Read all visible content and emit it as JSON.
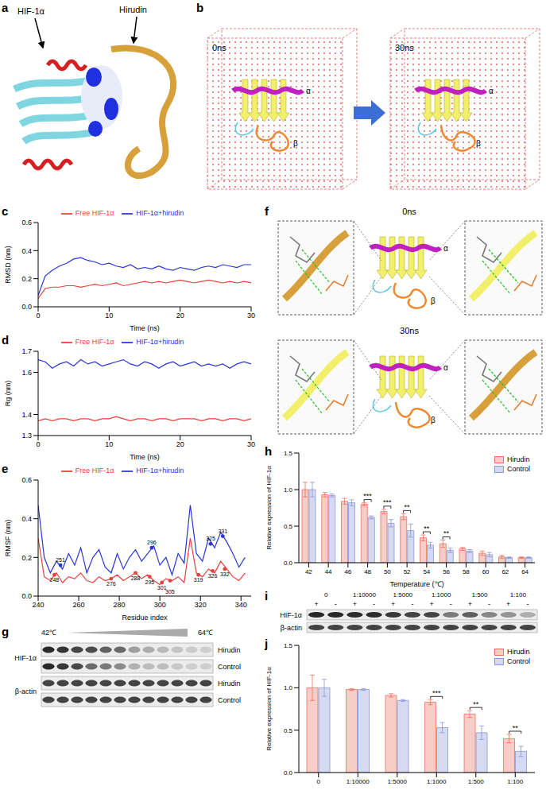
{
  "panel_labels": [
    "a",
    "b",
    "c",
    "d",
    "e",
    "f",
    "g",
    "h",
    "i",
    "j"
  ],
  "structures": {
    "a": {
      "labels": [
        "HIF-1α",
        "Hirudin"
      ]
    },
    "b": {
      "times": [
        "0ns",
        "30ns"
      ],
      "chains": [
        "α",
        "β"
      ]
    },
    "f": {
      "times": [
        "0ns",
        "30ns"
      ],
      "chains": [
        "α",
        "β"
      ]
    }
  },
  "blots": {
    "g": {
      "range_labels": [
        "42℃",
        "64℃"
      ],
      "rows": [
        {
          "protein": "HIF-1α",
          "group": "Hirudin"
        },
        {
          "protein": "HIF-1α",
          "group": "Control"
        },
        {
          "protein": "β-actin",
          "group": "Hirudin"
        },
        {
          "protein": "β-actin",
          "group": "Control"
        }
      ]
    },
    "i": {
      "treatments": [
        "+",
        "-"
      ],
      "rows": [
        "HIF-1α",
        "β-actin"
      ]
    }
  },
  "chart_data": [
    {
      "type": "line",
      "x_label": "Time (ns)",
      "y_label": "RMSD (nm)",
      "x": [
        0,
        1,
        2,
        3,
        4,
        5,
        6,
        7,
        8,
        9,
        10,
        11,
        12,
        13,
        14,
        15,
        16,
        17,
        18,
        19,
        20,
        21,
        22,
        23,
        24,
        25,
        26,
        27,
        28,
        29,
        30
      ],
      "series": [
        {
          "name": "Free HIF-1α",
          "color": "#e8413c",
          "values": [
            0.06,
            0.13,
            0.14,
            0.14,
            0.15,
            0.15,
            0.14,
            0.15,
            0.16,
            0.15,
            0.16,
            0.17,
            0.15,
            0.16,
            0.17,
            0.18,
            0.17,
            0.18,
            0.17,
            0.18,
            0.19,
            0.18,
            0.17,
            0.18,
            0.19,
            0.18,
            0.17,
            0.18,
            0.17,
            0.18,
            0.17
          ]
        },
        {
          "name": "HIF-1α+hirudin",
          "color": "#2b35d6",
          "values": [
            0.08,
            0.22,
            0.26,
            0.29,
            0.31,
            0.34,
            0.35,
            0.33,
            0.32,
            0.3,
            0.31,
            0.29,
            0.28,
            0.3,
            0.27,
            0.28,
            0.27,
            0.29,
            0.27,
            0.26,
            0.28,
            0.27,
            0.26,
            0.28,
            0.29,
            0.28,
            0.3,
            0.29,
            0.28,
            0.3,
            0.3
          ]
        }
      ],
      "xlim": [
        0,
        30
      ],
      "xticks": [
        0,
        10,
        20,
        30
      ],
      "ylim": [
        0,
        0.6
      ],
      "yticks": [
        {
          "value": 0,
          "label": "0.0"
        },
        0.2,
        0.4,
        0.6
      ],
      "legend": "top"
    },
    {
      "type": "line",
      "x_label": "Time (ns)",
      "y_label": "Rg (nm)",
      "x": [
        0,
        1,
        2,
        3,
        4,
        5,
        6,
        7,
        8,
        9,
        10,
        11,
        12,
        13,
        14,
        15,
        16,
        17,
        18,
        19,
        20,
        21,
        22,
        23,
        24,
        25,
        26,
        27,
        28,
        29,
        30
      ],
      "series": [
        {
          "name": "Free HIF-1α",
          "color": "#e8413c",
          "values": [
            1.37,
            1.38,
            1.37,
            1.38,
            1.38,
            1.37,
            1.38,
            1.38,
            1.37,
            1.38,
            1.38,
            1.39,
            1.38,
            1.37,
            1.38,
            1.38,
            1.37,
            1.38,
            1.38,
            1.37,
            1.38,
            1.38,
            1.38,
            1.37,
            1.38,
            1.38,
            1.37,
            1.38,
            1.38,
            1.37,
            1.38
          ]
        },
        {
          "name": "HIF-1α+hirudin",
          "color": "#2b35d6",
          "values": [
            1.66,
            1.65,
            1.62,
            1.64,
            1.65,
            1.63,
            1.66,
            1.64,
            1.65,
            1.63,
            1.64,
            1.65,
            1.66,
            1.64,
            1.63,
            1.65,
            1.64,
            1.62,
            1.64,
            1.65,
            1.63,
            1.64,
            1.65,
            1.63,
            1.64,
            1.63,
            1.64,
            1.62,
            1.64,
            1.65,
            1.64
          ]
        }
      ],
      "xlim": [
        0,
        30
      ],
      "xticks": [
        0,
        10,
        20,
        30
      ],
      "ylim": [
        1.3,
        1.7
      ],
      "yticks": [
        1.3,
        1.4,
        1.6,
        1.7
      ],
      "legend": "top"
    },
    {
      "type": "line",
      "x_label": "Residue index",
      "y_label": "RMSF (nm)",
      "x": [
        240,
        243,
        246,
        249,
        252,
        255,
        258,
        261,
        264,
        267,
        270,
        273,
        276,
        279,
        282,
        285,
        288,
        291,
        294,
        297,
        300,
        303,
        306,
        309,
        312,
        315,
        318,
        321,
        324,
        327,
        330,
        333,
        336,
        339,
        342
      ],
      "series": [
        {
          "name": "Free HIF-1α",
          "color": "#e8413c",
          "values": [
            0.3,
            0.1,
            0.08,
            0.12,
            0.07,
            0.1,
            0.09,
            0.12,
            0.08,
            0.07,
            0.1,
            0.08,
            0.09,
            0.11,
            0.08,
            0.1,
            0.12,
            0.09,
            0.11,
            0.08,
            0.06,
            0.09,
            0.08,
            0.1,
            0.07,
            0.3,
            0.12,
            0.1,
            0.14,
            0.12,
            0.18,
            0.14,
            0.1,
            0.08,
            0.12
          ]
        },
        {
          "name": "HIF-1α+hirudin",
          "color": "#2b35d6",
          "values": [
            0.47,
            0.2,
            0.12,
            0.18,
            0.14,
            0.22,
            0.16,
            0.25,
            0.12,
            0.2,
            0.24,
            0.15,
            0.12,
            0.22,
            0.14,
            0.2,
            0.24,
            0.18,
            0.22,
            0.26,
            0.16,
            0.2,
            0.11,
            0.22,
            0.17,
            0.47,
            0.22,
            0.18,
            0.3,
            0.25,
            0.33,
            0.28,
            0.22,
            0.15,
            0.2
          ]
        }
      ],
      "highlighted": [
        {
          "series": "Free HIF-1α",
          "x": 248,
          "y": 0.11
        },
        {
          "series": "HIF-1α+hirudin",
          "x": 251,
          "y": 0.16
        },
        {
          "series": "Free HIF-1α",
          "x": 276,
          "y": 0.09
        },
        {
          "series": "Free HIF-1α",
          "x": 288,
          "y": 0.12
        },
        {
          "series": "Free HIF-1α",
          "x": 295,
          "y": 0.1
        },
        {
          "series": "HIF-1α+hirudin",
          "x": 296,
          "y": 0.25
        },
        {
          "series": "Free HIF-1α",
          "x": 301,
          "y": 0.07
        },
        {
          "series": "Free HIF-1α",
          "x": 305,
          "y": 0.08
        },
        {
          "series": "Free HIF-1α",
          "x": 319,
          "y": 0.11
        },
        {
          "series": "HIF-1α+hirudin",
          "x": 325,
          "y": 0.27
        },
        {
          "series": "Free HIF-1α",
          "x": 326,
          "y": 0.13
        },
        {
          "series": "HIF-1α+hirudin",
          "x": 331,
          "y": 0.31
        },
        {
          "series": "Free HIF-1α",
          "x": 332,
          "y": 0.14
        }
      ],
      "xlim": [
        240,
        345
      ],
      "xticks": [
        240,
        260,
        280,
        300,
        320,
        340
      ],
      "ylim": [
        0,
        0.6
      ],
      "yticks": [
        {
          "value": 0,
          "label": "0.0"
        },
        0.2,
        0.4,
        0.6
      ],
      "legend": "top"
    },
    {
      "type": "bar",
      "x_label": "Temperature (℃)",
      "y_label": "Relative expression of HIF-1α",
      "categories": [
        "42",
        "44",
        "46",
        "48",
        "50",
        "52",
        "54",
        "56",
        "58",
        "60",
        "62",
        "64"
      ],
      "series": [
        {
          "name": "Hirudin",
          "color": "#e8715e",
          "values": [
            1.0,
            0.93,
            0.84,
            0.8,
            0.7,
            0.63,
            0.34,
            0.26,
            0.19,
            0.13,
            0.08,
            0.07
          ],
          "errors": [
            0.1,
            0.03,
            0.04,
            0.02,
            0.03,
            0.04,
            0.04,
            0.05,
            0.02,
            0.03,
            0.02,
            0.01
          ]
        },
        {
          "name": "Control",
          "color": "#8a96d4",
          "values": [
            1.0,
            0.92,
            0.82,
            0.62,
            0.54,
            0.44,
            0.24,
            0.17,
            0.16,
            0.11,
            0.07,
            0.07
          ],
          "errors": [
            0.1,
            0.02,
            0.04,
            0.02,
            0.05,
            0.09,
            0.04,
            0.03,
            0.02,
            0.03,
            0.01,
            0.01
          ]
        }
      ],
      "significance": [
        {
          "category": "48",
          "label": "***"
        },
        {
          "category": "50",
          "label": "***"
        },
        {
          "category": "52",
          "label": "**"
        },
        {
          "category": "54",
          "label": "**"
        },
        {
          "category": "56",
          "label": "**"
        }
      ],
      "ylim": [
        0,
        1.5
      ],
      "yticks": [
        {
          "value": 0,
          "label": "0.0"
        },
        0.5,
        {
          "value": 1,
          "label": "1.0"
        },
        1.5
      ],
      "legend": "top-right"
    },
    {
      "type": "bar",
      "y_label": "Relative expression of HIF-1α",
      "categories": [
        "0",
        "1:10000",
        "1:5000",
        "1:1000",
        "1:500",
        "1:100"
      ],
      "series": [
        {
          "name": "Hirudin",
          "color": "#e8715e",
          "values": [
            1.0,
            0.98,
            0.91,
            0.83,
            0.69,
            0.4
          ],
          "errors": [
            0.15,
            0.01,
            0.02,
            0.03,
            0.04,
            0.05
          ]
        },
        {
          "name": "Control",
          "color": "#8a96d4",
          "values": [
            1.0,
            0.98,
            0.85,
            0.53,
            0.47,
            0.25
          ],
          "errors": [
            0.1,
            0.01,
            0.01,
            0.06,
            0.08,
            0.06
          ]
        }
      ],
      "significance": [
        {
          "category": "1:1000",
          "label": "***"
        },
        {
          "category": "1:500",
          "label": "**"
        },
        {
          "category": "1:100",
          "label": "**"
        }
      ],
      "ylim": [
        0,
        1.5
      ],
      "yticks": [
        {
          "value": 0,
          "label": "0.0"
        },
        0.5,
        {
          "value": 1,
          "label": "1.0"
        },
        1.5
      ],
      "legend": "top-right"
    }
  ]
}
